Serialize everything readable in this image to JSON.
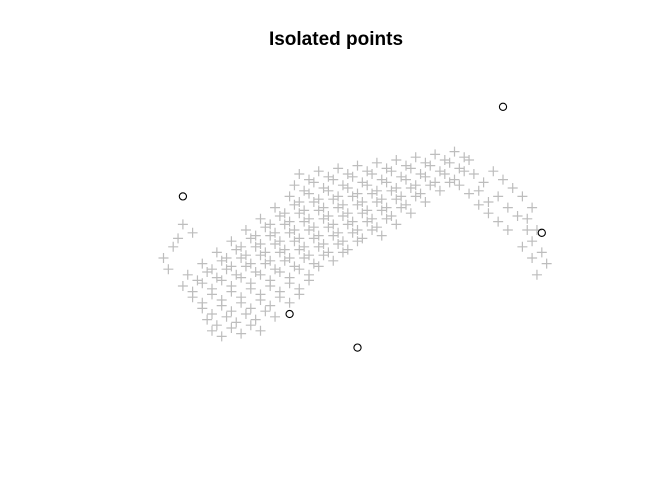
{
  "chart_data": {
    "type": "scatter",
    "title": "Isolated points",
    "xlabel": "",
    "ylabel": "",
    "axes_visible": false,
    "grid": false,
    "background": "#ffffff",
    "xlim": [
      0,
      100
    ],
    "ylim": [
      0,
      100
    ],
    "series": [
      {
        "role": "all-points",
        "marker": "plus",
        "color": "#bdbdbd",
        "points": [
          [
            38,
            70
          ],
          [
            40,
            68
          ],
          [
            42,
            71
          ],
          [
            44,
            69
          ],
          [
            46,
            72
          ],
          [
            48,
            70
          ],
          [
            50,
            73
          ],
          [
            52,
            71
          ],
          [
            54,
            74
          ],
          [
            56,
            72
          ],
          [
            58,
            75
          ],
          [
            60,
            73
          ],
          [
            62,
            76
          ],
          [
            64,
            74
          ],
          [
            66,
            77
          ],
          [
            68,
            75
          ],
          [
            70,
            78
          ],
          [
            72,
            76
          ],
          [
            37,
            66
          ],
          [
            39,
            64
          ],
          [
            41,
            67
          ],
          [
            43,
            65
          ],
          [
            45,
            68
          ],
          [
            47,
            66
          ],
          [
            49,
            69
          ],
          [
            51,
            67
          ],
          [
            53,
            70
          ],
          [
            55,
            68
          ],
          [
            57,
            71
          ],
          [
            59,
            69
          ],
          [
            61,
            72
          ],
          [
            63,
            70
          ],
          [
            65,
            73
          ],
          [
            67,
            71
          ],
          [
            69,
            74
          ],
          [
            71,
            72
          ],
          [
            73,
            75
          ],
          [
            36,
            62
          ],
          [
            38,
            60
          ],
          [
            40,
            63
          ],
          [
            42,
            61
          ],
          [
            44,
            64
          ],
          [
            46,
            62
          ],
          [
            48,
            65
          ],
          [
            50,
            63
          ],
          [
            52,
            66
          ],
          [
            54,
            64
          ],
          [
            56,
            67
          ],
          [
            58,
            65
          ],
          [
            60,
            68
          ],
          [
            62,
            66
          ],
          [
            64,
            69
          ],
          [
            66,
            67
          ],
          [
            68,
            70
          ],
          [
            70,
            68
          ],
          [
            72,
            71
          ],
          [
            33,
            58
          ],
          [
            35,
            56
          ],
          [
            37,
            59
          ],
          [
            39,
            57
          ],
          [
            41,
            60
          ],
          [
            43,
            58
          ],
          [
            45,
            61
          ],
          [
            47,
            59
          ],
          [
            49,
            62
          ],
          [
            51,
            60
          ],
          [
            53,
            63
          ],
          [
            55,
            61
          ],
          [
            57,
            64
          ],
          [
            59,
            62
          ],
          [
            61,
            65
          ],
          [
            63,
            63
          ],
          [
            65,
            66
          ],
          [
            67,
            64
          ],
          [
            69,
            67
          ],
          [
            30,
            54
          ],
          [
            32,
            52
          ],
          [
            34,
            55
          ],
          [
            36,
            53
          ],
          [
            38,
            56
          ],
          [
            40,
            54
          ],
          [
            42,
            57
          ],
          [
            44,
            55
          ],
          [
            46,
            58
          ],
          [
            48,
            56
          ],
          [
            50,
            59
          ],
          [
            52,
            57
          ],
          [
            54,
            60
          ],
          [
            56,
            58
          ],
          [
            58,
            61
          ],
          [
            60,
            59
          ],
          [
            62,
            62
          ],
          [
            64,
            60
          ],
          [
            27,
            50
          ],
          [
            29,
            48
          ],
          [
            31,
            51
          ],
          [
            33,
            49
          ],
          [
            35,
            52
          ],
          [
            37,
            50
          ],
          [
            39,
            53
          ],
          [
            41,
            51
          ],
          [
            43,
            54
          ],
          [
            45,
            52
          ],
          [
            47,
            55
          ],
          [
            49,
            53
          ],
          [
            51,
            56
          ],
          [
            53,
            54
          ],
          [
            55,
            57
          ],
          [
            57,
            55
          ],
          [
            59,
            58
          ],
          [
            61,
            56
          ],
          [
            24,
            46
          ],
          [
            26,
            44
          ],
          [
            28,
            47
          ],
          [
            30,
            45
          ],
          [
            32,
            48
          ],
          [
            34,
            46
          ],
          [
            36,
            49
          ],
          [
            38,
            47
          ],
          [
            40,
            50
          ],
          [
            42,
            48
          ],
          [
            44,
            51
          ],
          [
            46,
            49
          ],
          [
            48,
            52
          ],
          [
            50,
            50
          ],
          [
            52,
            53
          ],
          [
            54,
            51
          ],
          [
            56,
            54
          ],
          [
            58,
            52
          ],
          [
            21,
            42
          ],
          [
            23,
            40
          ],
          [
            25,
            43
          ],
          [
            27,
            41
          ],
          [
            29,
            44
          ],
          [
            31,
            42
          ],
          [
            33,
            45
          ],
          [
            35,
            43
          ],
          [
            37,
            46
          ],
          [
            39,
            44
          ],
          [
            41,
            47
          ],
          [
            43,
            45
          ],
          [
            45,
            48
          ],
          [
            47,
            46
          ],
          [
            49,
            49
          ],
          [
            51,
            47
          ],
          [
            53,
            50
          ],
          [
            55,
            48
          ],
          [
            18,
            38
          ],
          [
            20,
            36
          ],
          [
            22,
            39
          ],
          [
            24,
            37
          ],
          [
            26,
            40
          ],
          [
            28,
            38
          ],
          [
            30,
            41
          ],
          [
            32,
            39
          ],
          [
            34,
            42
          ],
          [
            36,
            40
          ],
          [
            38,
            43
          ],
          [
            40,
            41
          ],
          [
            42,
            44
          ],
          [
            44,
            42
          ],
          [
            46,
            45
          ],
          [
            48,
            43
          ],
          [
            50,
            46
          ],
          [
            15,
            34
          ],
          [
            17,
            32
          ],
          [
            19,
            35
          ],
          [
            21,
            33
          ],
          [
            23,
            36
          ],
          [
            25,
            34
          ],
          [
            27,
            37
          ],
          [
            29,
            35
          ],
          [
            31,
            38
          ],
          [
            33,
            36
          ],
          [
            35,
            39
          ],
          [
            37,
            37
          ],
          [
            39,
            40
          ],
          [
            41,
            38
          ],
          [
            43,
            41
          ],
          [
            45,
            39
          ],
          [
            47,
            42
          ],
          [
            14,
            30
          ],
          [
            16,
            28
          ],
          [
            18,
            31
          ],
          [
            20,
            29
          ],
          [
            22,
            32
          ],
          [
            24,
            30
          ],
          [
            26,
            33
          ],
          [
            28,
            31
          ],
          [
            30,
            34
          ],
          [
            32,
            32
          ],
          [
            34,
            35
          ],
          [
            36,
            33
          ],
          [
            38,
            36
          ],
          [
            40,
            34
          ],
          [
            42,
            37
          ],
          [
            16,
            26
          ],
          [
            18,
            24
          ],
          [
            20,
            27
          ],
          [
            22,
            25
          ],
          [
            24,
            28
          ],
          [
            26,
            26
          ],
          [
            28,
            29
          ],
          [
            30,
            27
          ],
          [
            32,
            30
          ],
          [
            34,
            28
          ],
          [
            36,
            31
          ],
          [
            38,
            29
          ],
          [
            40,
            32
          ],
          [
            18,
            22
          ],
          [
            20,
            20
          ],
          [
            22,
            23
          ],
          [
            24,
            21
          ],
          [
            26,
            24
          ],
          [
            28,
            22
          ],
          [
            30,
            25
          ],
          [
            32,
            23
          ],
          [
            34,
            26
          ],
          [
            36,
            24
          ],
          [
            38,
            27
          ],
          [
            19,
            18
          ],
          [
            21,
            16
          ],
          [
            23,
            19
          ],
          [
            25,
            17
          ],
          [
            27,
            20
          ],
          [
            29,
            18
          ],
          [
            31,
            21
          ],
          [
            33,
            19
          ],
          [
            20,
            14
          ],
          [
            22,
            12
          ],
          [
            24,
            15
          ],
          [
            26,
            13
          ],
          [
            28,
            16
          ],
          [
            30,
            14
          ],
          [
            74,
            70
          ],
          [
            76,
            67
          ],
          [
            78,
            71
          ],
          [
            80,
            68
          ],
          [
            82,
            65
          ],
          [
            84,
            62
          ],
          [
            86,
            58
          ],
          [
            85,
            54
          ],
          [
            87,
            50
          ],
          [
            86,
            46
          ],
          [
            88,
            42
          ],
          [
            89,
            38
          ],
          [
            87,
            34
          ],
          [
            75,
            64
          ],
          [
            77,
            60
          ],
          [
            79,
            62
          ],
          [
            81,
            58
          ],
          [
            83,
            55
          ],
          [
            85,
            50
          ],
          [
            84,
            44
          ],
          [
            86,
            40
          ],
          [
            71,
            66
          ],
          [
            73,
            63
          ],
          [
            75,
            59
          ],
          [
            77,
            56
          ],
          [
            79,
            53
          ],
          [
            81,
            50
          ],
          [
            12,
            44
          ],
          [
            10,
            40
          ],
          [
            13,
            47
          ],
          [
            11,
            36
          ],
          [
            14,
            52
          ],
          [
            16,
            49
          ]
        ]
      },
      {
        "role": "isolated",
        "marker": "circle",
        "color": "#000000",
        "points": [
          [
            14,
            62
          ],
          [
            80,
            94
          ],
          [
            88,
            49
          ],
          [
            36,
            20
          ],
          [
            50,
            8
          ]
        ]
      }
    ]
  }
}
